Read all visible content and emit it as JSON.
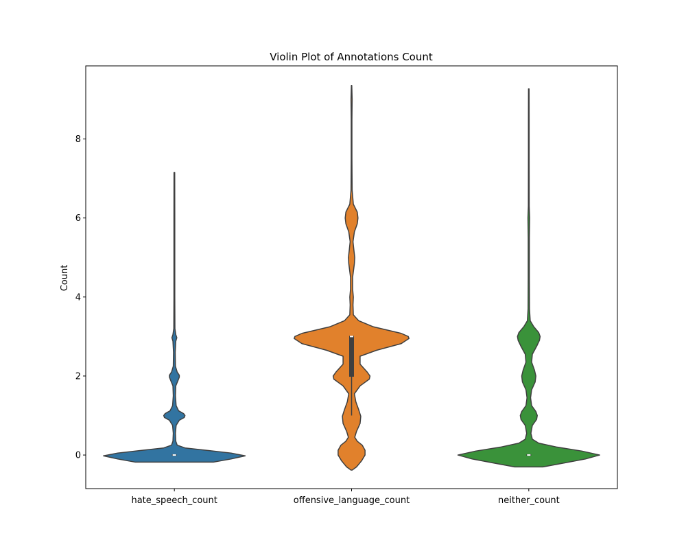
{
  "chart_data": {
    "type": "violin",
    "title": "Violin Plot of Annotations Count",
    "xlabel": "",
    "ylabel": "Count",
    "ylim": [
      -0.85,
      9.85
    ],
    "yticks": [
      0,
      2,
      4,
      6,
      8
    ],
    "categories": [
      "hate_speech_count",
      "offensive_language_count",
      "neither_count"
    ],
    "grid": false,
    "series": [
      {
        "category": "hate_speech_count",
        "color": "#3274a1",
        "range": [
          -0.18,
          7.15
        ],
        "box": {
          "q1": 0,
          "median": 0,
          "q3": 0,
          "whisker_low": 0,
          "whisker_high": 0
        },
        "density": [
          [
            -0.18,
            0.55
          ],
          [
            -0.1,
            0.8
          ],
          [
            -0.02,
            1.0
          ],
          [
            0.05,
            0.8
          ],
          [
            0.12,
            0.45
          ],
          [
            0.18,
            0.15
          ],
          [
            0.25,
            0.04
          ],
          [
            0.35,
            0.02
          ],
          [
            0.55,
            0.015
          ],
          [
            0.75,
            0.025
          ],
          [
            0.88,
            0.07
          ],
          [
            0.95,
            0.14
          ],
          [
            1.0,
            0.15
          ],
          [
            1.05,
            0.13
          ],
          [
            1.12,
            0.06
          ],
          [
            1.25,
            0.025
          ],
          [
            1.5,
            0.015
          ],
          [
            1.75,
            0.02
          ],
          [
            1.88,
            0.05
          ],
          [
            1.97,
            0.07
          ],
          [
            2.02,
            0.07
          ],
          [
            2.1,
            0.04
          ],
          [
            2.25,
            0.015
          ],
          [
            2.6,
            0.012
          ],
          [
            2.88,
            0.02
          ],
          [
            2.97,
            0.035
          ],
          [
            3.05,
            0.02
          ],
          [
            3.2,
            0.008
          ],
          [
            4.0,
            0.006
          ],
          [
            5.0,
            0.006
          ],
          [
            6.0,
            0.006
          ],
          [
            7.15,
            0.005
          ]
        ]
      },
      {
        "category": "offensive_language_count",
        "color": "#e1812c",
        "range": [
          -0.38,
          9.35
        ],
        "box": {
          "q1": 2,
          "median": 3,
          "q3": 3,
          "whisker_low": 1,
          "whisker_high": 3
        },
        "density": [
          [
            -0.38,
            0.01
          ],
          [
            -0.3,
            0.07
          ],
          [
            -0.15,
            0.14
          ],
          [
            0.0,
            0.19
          ],
          [
            0.12,
            0.19
          ],
          [
            0.25,
            0.15
          ],
          [
            0.35,
            0.08
          ],
          [
            0.45,
            0.045
          ],
          [
            0.6,
            0.07
          ],
          [
            0.8,
            0.12
          ],
          [
            0.98,
            0.13
          ],
          [
            1.15,
            0.1
          ],
          [
            1.35,
            0.06
          ],
          [
            1.55,
            0.04
          ],
          [
            1.75,
            0.12
          ],
          [
            1.92,
            0.25
          ],
          [
            2.0,
            0.26
          ],
          [
            2.1,
            0.22
          ],
          [
            2.3,
            0.12
          ],
          [
            2.5,
            0.12
          ],
          [
            2.65,
            0.35
          ],
          [
            2.82,
            0.7
          ],
          [
            2.95,
            0.81
          ],
          [
            3.0,
            0.8
          ],
          [
            3.08,
            0.7
          ],
          [
            3.25,
            0.3
          ],
          [
            3.4,
            0.1
          ],
          [
            3.55,
            0.025
          ],
          [
            3.8,
            0.02
          ],
          [
            4.0,
            0.025
          ],
          [
            4.2,
            0.015
          ],
          [
            4.5,
            0.015
          ],
          [
            4.85,
            0.04
          ],
          [
            5.0,
            0.045
          ],
          [
            5.15,
            0.035
          ],
          [
            5.4,
            0.02
          ],
          [
            5.65,
            0.04
          ],
          [
            5.85,
            0.08
          ],
          [
            6.0,
            0.09
          ],
          [
            6.15,
            0.08
          ],
          [
            6.35,
            0.025
          ],
          [
            6.7,
            0.008
          ],
          [
            7.5,
            0.005
          ],
          [
            8.5,
            0.005
          ],
          [
            9.0,
            0.008
          ],
          [
            9.35,
            0.003
          ]
        ]
      },
      {
        "category": "neither_count",
        "color": "#3a923a",
        "range": [
          -0.3,
          9.27
        ],
        "box": {
          "q1": 0,
          "median": 0,
          "q3": 0,
          "whisker_low": 0,
          "whisker_high": 0
        },
        "density": [
          [
            -0.3,
            0.2
          ],
          [
            -0.2,
            0.5
          ],
          [
            -0.1,
            0.8
          ],
          [
            0.0,
            1.0
          ],
          [
            0.1,
            0.75
          ],
          [
            0.2,
            0.4
          ],
          [
            0.3,
            0.14
          ],
          [
            0.4,
            0.05
          ],
          [
            0.55,
            0.03
          ],
          [
            0.75,
            0.05
          ],
          [
            0.9,
            0.11
          ],
          [
            1.0,
            0.12
          ],
          [
            1.1,
            0.1
          ],
          [
            1.25,
            0.04
          ],
          [
            1.45,
            0.025
          ],
          [
            1.65,
            0.04
          ],
          [
            1.85,
            0.09
          ],
          [
            2.0,
            0.1
          ],
          [
            2.15,
            0.08
          ],
          [
            2.35,
            0.04
          ],
          [
            2.55,
            0.05
          ],
          [
            2.75,
            0.11
          ],
          [
            2.9,
            0.15
          ],
          [
            3.0,
            0.16
          ],
          [
            3.1,
            0.14
          ],
          [
            3.25,
            0.07
          ],
          [
            3.4,
            0.02
          ],
          [
            3.7,
            0.01
          ],
          [
            4.5,
            0.008
          ],
          [
            5.5,
            0.008
          ],
          [
            6.0,
            0.012
          ],
          [
            6.3,
            0.006
          ],
          [
            7.5,
            0.005
          ],
          [
            8.5,
            0.005
          ],
          [
            9.27,
            0.004
          ]
        ]
      }
    ]
  }
}
